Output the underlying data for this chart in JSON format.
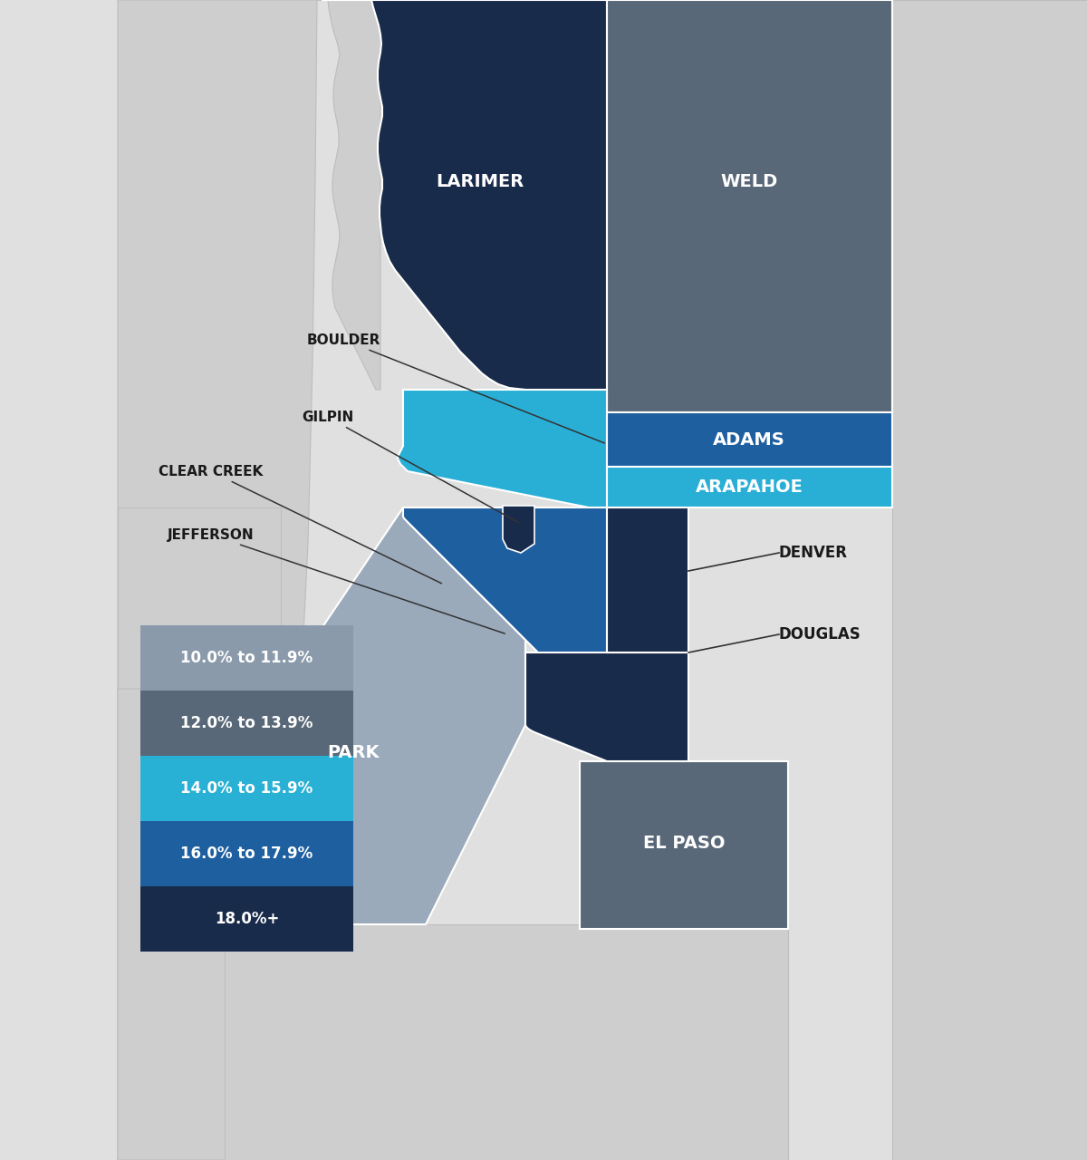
{
  "bg_color": "#e2e2e2",
  "county_outline": "white",
  "bg_county_color": "#d0d0d0",
  "colors": {
    "light_gray_bg": "#d0d0d0",
    "park_gray": "#9aabba",
    "weld_gray": "#596878",
    "elpaso_gray": "#596878",
    "boulder_blue": "#28b0d5",
    "arapahoe_blue": "#28b0d5",
    "jefferson_blue": "#1e5fa0",
    "adams_blue": "#1e5fa0",
    "dark_navy": "#192b4a",
    "legend_gray1": "#8a9aaa",
    "legend_gray2": "#596878"
  },
  "legend": [
    {
      "label": "10.0% to 11.9%",
      "color": "#8a9aaa"
    },
    {
      "label": "12.0% to 13.9%",
      "color": "#596878"
    },
    {
      "label": "14.0% to 15.9%",
      "color": "#28b0d5"
    },
    {
      "label": "16.0% to 17.9%",
      "color": "#1e5fa0"
    },
    {
      "label": "18.0%+",
      "color": "#192b4a"
    }
  ]
}
